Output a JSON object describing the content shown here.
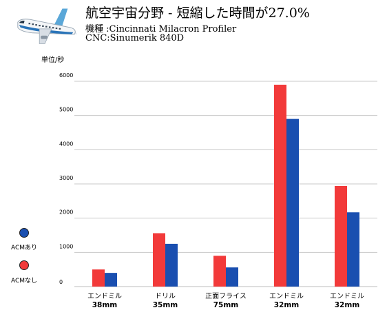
{
  "header": {
    "title": "航空宇宙分野 - 短縮した時間が27.0%",
    "machine": "機種 :Cincinnati Milacron Profiler",
    "cnc": "CNC:Sinumerik 840D"
  },
  "icons": {
    "logo": "airplane-icon"
  },
  "legend": [
    {
      "label": "ACMあり",
      "color": "#1a4fb0"
    },
    {
      "label": "ACMなし",
      "color": "#f23a3a"
    }
  ],
  "colors": {
    "with_acm": "#1a4fb0",
    "without_acm": "#f23a3a",
    "grid": "#c8c8c8"
  },
  "chart_data": {
    "type": "bar",
    "ylabel": "単位/秒",
    "ylim": [
      0,
      6000
    ],
    "yticks": [
      0,
      1000,
      2000,
      3000,
      4000,
      5000,
      6000
    ],
    "grid": true,
    "legend_position": "left",
    "categories": [
      {
        "line1": "エンドミル",
        "line2": "38mm"
      },
      {
        "line1": "ドリル",
        "line2": "35mm"
      },
      {
        "line1": "正面フライス",
        "line2": "75mm"
      },
      {
        "line1": "エンドミル",
        "line2": "32mm"
      },
      {
        "line1": "エンドミル",
        "line2": "32mm"
      }
    ],
    "series": [
      {
        "name": "ACMなし",
        "values": [
          500,
          1560,
          900,
          5900,
          2940
        ]
      },
      {
        "name": "ACMあり",
        "values": [
          400,
          1250,
          560,
          4900,
          2170
        ]
      }
    ]
  }
}
